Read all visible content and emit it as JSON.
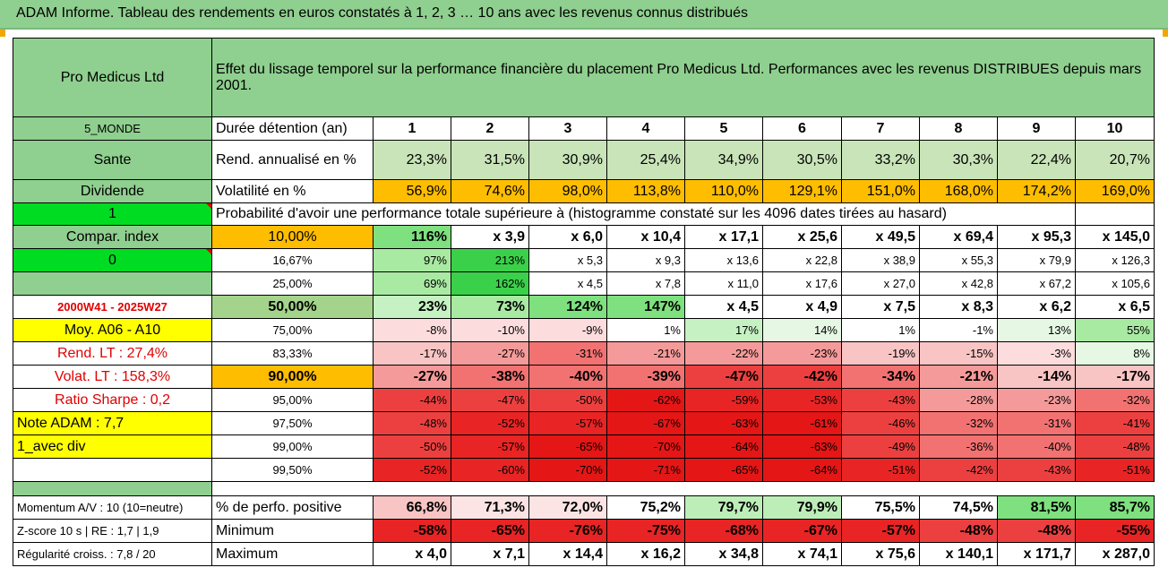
{
  "title": "ADAM Informe. Tableau des rendements en euros constatés à 1, 2, 3 … 10 ans avec les revenus connus distribués",
  "colors": {
    "header_green": "#8fcf8f",
    "yellow": "#ffff00",
    "orange": "#ffbd00",
    "bright_green": "#00dc22",
    "red_text": "#e00000"
  },
  "header": {
    "fund": "Pro Medicus Ltd",
    "description": "Effet du lissage temporel sur la performance financière du placement Pro Medicus Ltd. Performances avec les revenus DISTRIBUES depuis mars 2001."
  },
  "left_panel": {
    "category": "5_MONDE",
    "sector": "Sante",
    "dividend_label": "Dividende",
    "flag_value": "1",
    "compar_label": "Compar. index",
    "compar_value": "0",
    "period": "2000W41 - 2025W27",
    "moy": "Moy. A06 - A10",
    "rend_lt": "Rend. LT :   27,4%",
    "volat_lt": "Volat. LT :   158,3%",
    "sharpe": "Ratio Sharpe :    0,2",
    "note": "Note ADAM : 7,7",
    "div_mode": "1_avec div"
  },
  "rows": {
    "duration": {
      "label": "Durée détention (an)",
      "values": [
        "1",
        "2",
        "3",
        "4",
        "5",
        "6",
        "7",
        "8",
        "9",
        "10"
      ]
    },
    "return": {
      "label": "Rend. annualisé en %",
      "values": [
        "23,3%",
        "31,5%",
        "30,9%",
        "25,4%",
        "34,9%",
        "30,5%",
        "33,2%",
        "30,3%",
        "22,4%",
        "20,7%"
      ]
    },
    "volatility": {
      "label": "Volatilité en %",
      "values": [
        "56,9%",
        "74,6%",
        "98,0%",
        "113,8%",
        "110,0%",
        "129,1%",
        "151,0%",
        "168,0%",
        "174,2%",
        "169,0%"
      ]
    },
    "probability_title": "Probabilité d'avoir une performance totale supérieure à (histogramme constaté sur les 4096 dates tirées au hasard)"
  },
  "probability": [
    {
      "pct": "10,00%",
      "values": [
        "116%",
        "x 3,9",
        "x 6,0",
        "x 10,4",
        "x 17,1",
        "x 25,6",
        "x 49,5",
        "x 69,4",
        "x 95,3",
        "x 145,0"
      ]
    },
    {
      "pct": "16,67%",
      "values": [
        "97%",
        "213%",
        "x 5,3",
        "x 9,3",
        "x 13,6",
        "x 22,8",
        "x 38,9",
        "x 55,3",
        "x 79,9",
        "x 126,3"
      ]
    },
    {
      "pct": "25,00%",
      "values": [
        "69%",
        "162%",
        "x 4,5",
        "x 7,8",
        "x 11,0",
        "x 17,6",
        "x 27,0",
        "x 42,8",
        "x 67,2",
        "x 105,6"
      ]
    },
    {
      "pct": "50,00%",
      "values": [
        "23%",
        "73%",
        "124%",
        "147%",
        "x 4,5",
        "x 4,9",
        "x 7,5",
        "x 8,3",
        "x 6,2",
        "x 6,5"
      ]
    },
    {
      "pct": "75,00%",
      "values": [
        "-8%",
        "-10%",
        "-9%",
        "1%",
        "17%",
        "14%",
        "1%",
        "-1%",
        "13%",
        "55%"
      ]
    },
    {
      "pct": "83,33%",
      "values": [
        "-17%",
        "-27%",
        "-31%",
        "-21%",
        "-22%",
        "-23%",
        "-19%",
        "-15%",
        "-3%",
        "8%"
      ]
    },
    {
      "pct": "90,00%",
      "values": [
        "-27%",
        "-38%",
        "-40%",
        "-39%",
        "-47%",
        "-42%",
        "-34%",
        "-21%",
        "-14%",
        "-17%"
      ]
    },
    {
      "pct": "95,00%",
      "values": [
        "-44%",
        "-47%",
        "-50%",
        "-62%",
        "-59%",
        "-53%",
        "-43%",
        "-28%",
        "-23%",
        "-32%"
      ]
    },
    {
      "pct": "97,50%",
      "values": [
        "-48%",
        "-52%",
        "-57%",
        "-67%",
        "-63%",
        "-61%",
        "-46%",
        "-32%",
        "-31%",
        "-41%"
      ]
    },
    {
      "pct": "99,00%",
      "values": [
        "-50%",
        "-57%",
        "-65%",
        "-70%",
        "-64%",
        "-63%",
        "-49%",
        "-36%",
        "-40%",
        "-48%"
      ]
    },
    {
      "pct": "99,50%",
      "values": [
        "-52%",
        "-60%",
        "-70%",
        "-71%",
        "-65%",
        "-64%",
        "-51%",
        "-42%",
        "-43%",
        "-51%"
      ]
    }
  ],
  "bottom": [
    {
      "left": "Momentum A/V : 10 (10=neutre)",
      "label": "% de perfo. positive",
      "values": [
        "66,8%",
        "71,3%",
        "72,0%",
        "75,2%",
        "79,7%",
        "79,9%",
        "75,5%",
        "74,5%",
        "81,5%",
        "85,7%"
      ]
    },
    {
      "left": "Z-score 10 s | RE : 1,7 | 1,9",
      "label": "Minimum",
      "values": [
        "-58%",
        "-65%",
        "-76%",
        "-75%",
        "-68%",
        "-67%",
        "-57%",
        "-48%",
        "-48%",
        "-55%"
      ]
    },
    {
      "left": "Régularité croiss. : 7,8 / 20",
      "label": "Maximum",
      "values": [
        "x 4,0",
        "x 7,1",
        "x 14,4",
        "x 16,2",
        "x 34,8",
        "x 74,1",
        "x 75,6",
        "x 140,1",
        "x 171,7",
        "x 287,0"
      ]
    }
  ]
}
